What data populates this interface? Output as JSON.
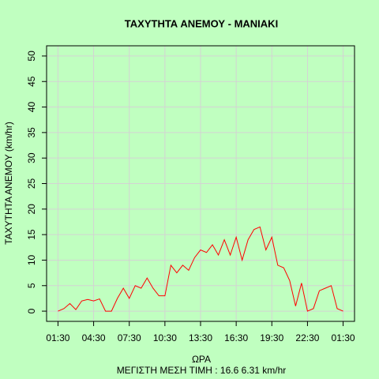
{
  "chart_data": {
    "type": "line",
    "title": "ΤΑΧΥΤΗΤΑ ΑΝΕΜΟΥ - ΜΑΝΙΑΚΙ",
    "xlabel": "ΩΡΑ",
    "subtitle": "ΜΕΓΙΣΤΗ ΜΕΣΗ ΤΙΜΗ :  16.6  6.31  km/hr",
    "ylabel": "ΤΑΧΥΤΗΤΑ ΑΝΕΜΟΥ  (km/hr)",
    "x": [
      0,
      0.5,
      1,
      1.5,
      2,
      2.5,
      3,
      3.5,
      4,
      4.5,
      5,
      5.5,
      6,
      6.5,
      7,
      7.5,
      8,
      8.5,
      9,
      9.5,
      10,
      10.5,
      11,
      11.5,
      12,
      12.5,
      13,
      13.5,
      14,
      14.5,
      15,
      15.5,
      16,
      16.5,
      17,
      17.5,
      18,
      18.5,
      19,
      19.5,
      20,
      20.5,
      21,
      21.5,
      22,
      22.5,
      23,
      23.5,
      24
    ],
    "series": [
      {
        "name": "ΤΑΧΥΤΗΤΑ ΑΝΕΜΟΥ",
        "color": "#ff0000",
        "values": [
          0,
          0.5,
          1.5,
          0.3,
          2,
          2.3,
          2,
          2.4,
          0,
          0,
          2.5,
          4.5,
          2.5,
          5,
          4.5,
          6.5,
          4.5,
          3,
          3,
          9,
          7.5,
          9,
          8,
          10.5,
          12,
          11.5,
          13,
          11,
          14,
          11,
          14.5,
          10,
          14,
          16,
          16.5,
          12,
          14.5,
          9,
          8.5,
          6,
          1,
          5.5,
          0,
          0.5,
          4,
          4.5,
          5,
          0.5,
          0
        ]
      }
    ],
    "xlim": [
      -0.96,
      24.96
    ],
    "ylim": [
      -2,
      52
    ],
    "xticks": [
      {
        "value": 0,
        "label": "01:30"
      },
      {
        "value": 3,
        "label": "04:30"
      },
      {
        "value": 6,
        "label": "07:30"
      },
      {
        "value": 9,
        "label": "10:30"
      },
      {
        "value": 12,
        "label": "13:30"
      },
      {
        "value": 15,
        "label": "16:30"
      },
      {
        "value": 18,
        "label": "19:30"
      },
      {
        "value": 21,
        "label": "22:30"
      },
      {
        "value": 24,
        "label": "01:30"
      }
    ],
    "yticks": [
      0,
      5,
      10,
      15,
      20,
      25,
      30,
      35,
      40,
      45,
      50
    ],
    "grid": true
  }
}
